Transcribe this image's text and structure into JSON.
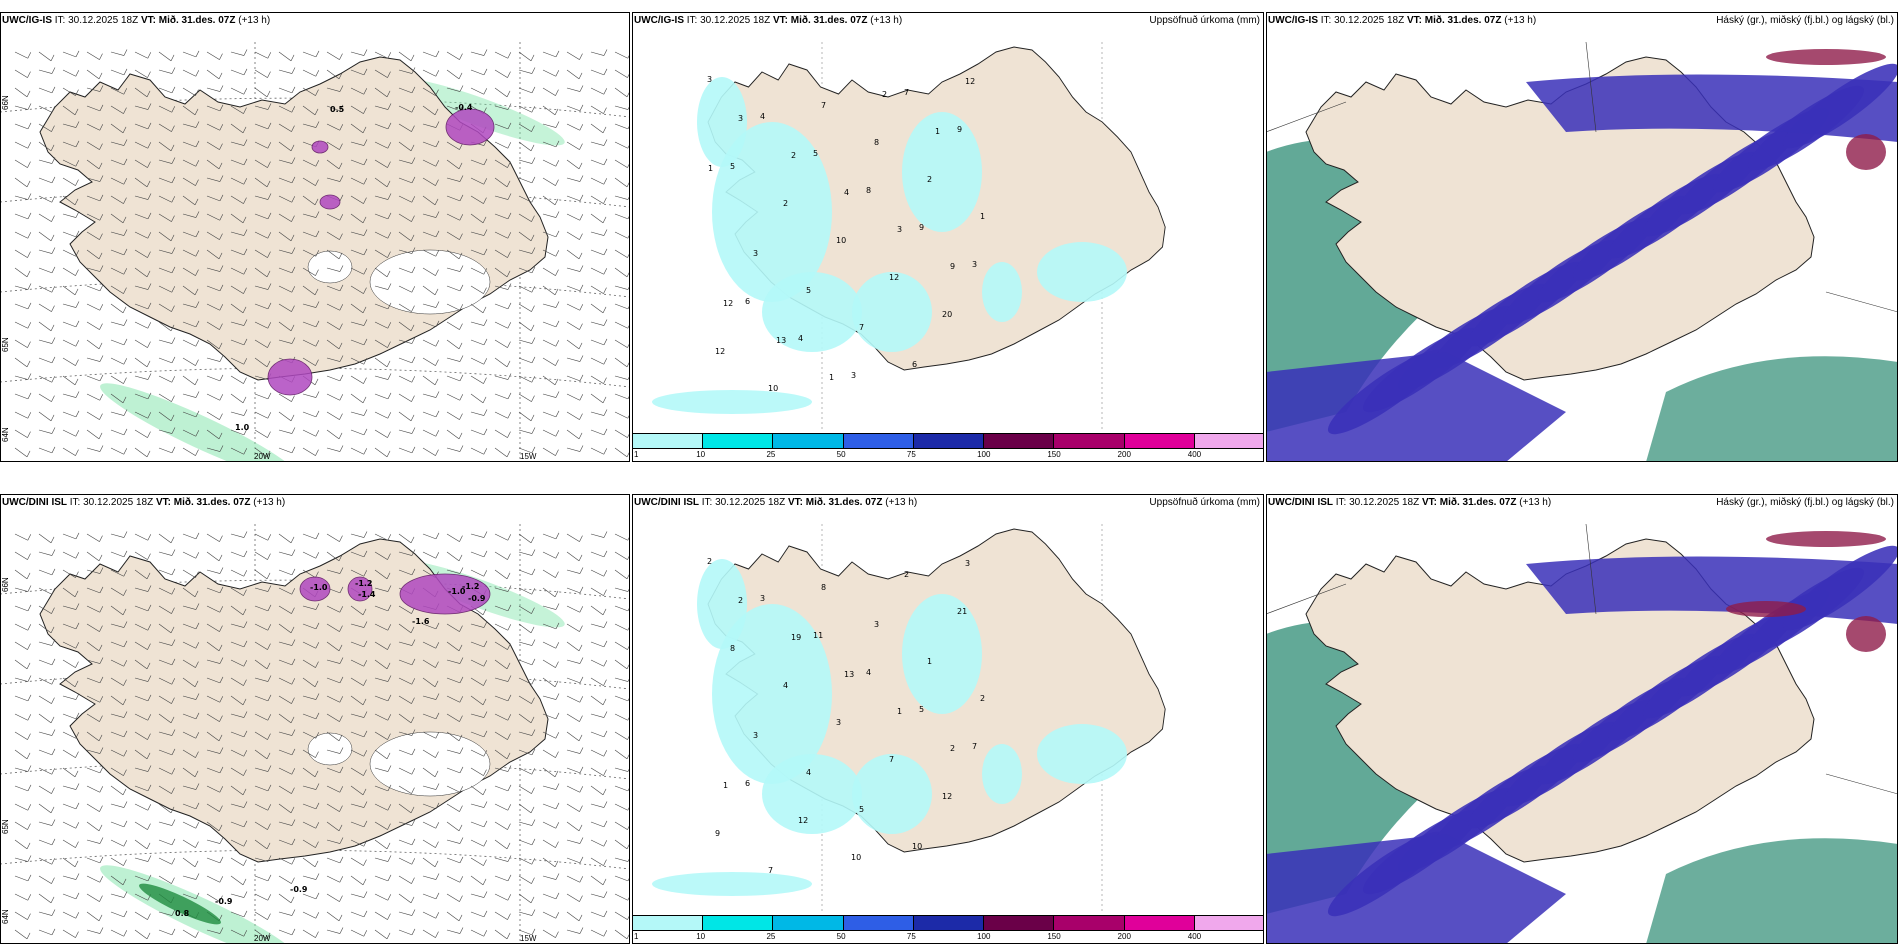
{
  "rows": [
    {
      "model": "UWC/IG-IS",
      "it_label": "IT: 30.12.2025 18Z",
      "vt_label": "VT: Mið. 31.des. 07Z",
      "lead": "(+13 h)",
      "panel1_values": [
        "0.5",
        "-0.4",
        "1.0"
      ],
      "panel2_title": "Uppsöfnuð úrkoma (mm)",
      "panel2_values": [
        "3",
        "4",
        "5",
        "8",
        "9",
        "3",
        "6",
        "4",
        "3",
        "7",
        "9",
        "5",
        "2",
        "10",
        "12",
        "20",
        "12",
        "10",
        "7",
        "8",
        "2",
        "1",
        "3",
        "5",
        "7",
        "6",
        "12",
        "3",
        "2",
        "4",
        "3",
        "9",
        "12",
        "13",
        "1",
        "2",
        "1",
        "1"
      ],
      "panel3_title": "Háský (gr.), miðský (fj.bl.) og lágský (bl.)"
    },
    {
      "model": "UWC/DINI ISL",
      "it_label": "IT: 30.12.2025 18Z",
      "vt_label": "VT: Mið. 31.des. 07Z",
      "lead": "(+13 h)",
      "panel1_values": [
        "-1.0",
        "-1.2",
        "-1.4",
        "-1.0",
        "-1.2",
        "-0.9",
        "-1.6",
        "0.8",
        "-0.9",
        "-0.9"
      ],
      "panel2_title": "Uppsöfnuð úrkoma (mm)",
      "panel2_values": [
        "2",
        "3",
        "11",
        "4",
        "5",
        "7",
        "6",
        "12",
        "10",
        "2",
        "21",
        "8",
        "4",
        "3",
        "7",
        "12",
        "9",
        "7",
        "8",
        "3",
        "1",
        "2",
        "3",
        "4",
        "5",
        "10",
        "3",
        "2",
        "19",
        "13",
        "1",
        "2",
        "1"
      ],
      "panel3_title": "Háský (gr.), miðský (fj.bl.) og lágský (bl.)"
    }
  ],
  "axis": {
    "lon_labels": [
      "20W",
      "15W"
    ],
    "lat_labels": [
      "66N",
      "64N",
      "65N"
    ]
  },
  "colorbar": {
    "ticks": [
      "1",
      "10",
      "25",
      "50",
      "75",
      "100",
      "150",
      "200",
      "400"
    ],
    "colors": [
      "#b4f8f8",
      "#00e6e6",
      "#00b8e6",
      "#2e5ee6",
      "#1c2aa8",
      "#6a0048",
      "#a8006a",
      "#e0009a",
      "#f0a8ec"
    ]
  },
  "colors": {
    "land": "#efe3d4",
    "precip_light": "#b4f8f8",
    "cloud_low": "#3a30b8",
    "cloud_mid": "#2e8c74",
    "cloud_high": "#8e1c4a",
    "wet_green": "#7ee4a8"
  }
}
